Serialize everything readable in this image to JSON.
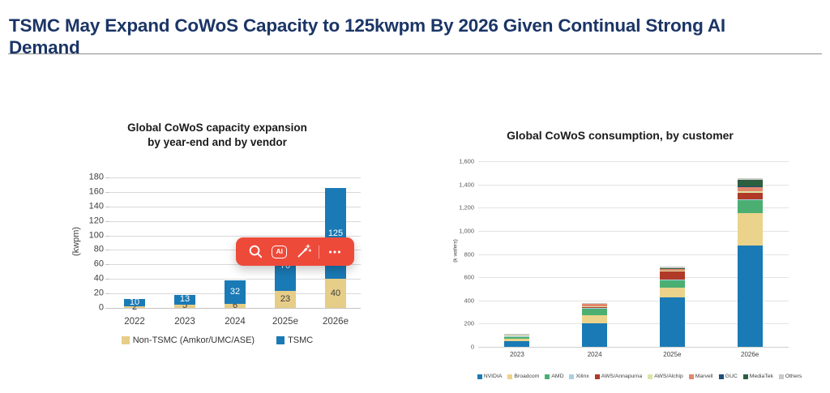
{
  "page": {
    "title": "TSMC May Expand CoWoS Capacity to 125kwpm By 2026 Given Continual Strong AI Demand"
  },
  "toolbar": {
    "color": "#ee4a3a",
    "ai_label": "AI",
    "icons": [
      "search-icon",
      "ai-icon",
      "magic-wand-icon",
      "more-icon"
    ]
  },
  "chart_data": [
    {
      "type": "bar",
      "stacked": true,
      "title": "Global CoWoS capacity expansion\nby year-end and by vendor",
      "ylabel": "(kwpm)",
      "ylim": [
        0,
        180
      ],
      "ytick_step": 20,
      "grid": true,
      "legend_position": "bottom",
      "categories": [
        "2022",
        "2023",
        "2024",
        "2025e",
        "2026e"
      ],
      "series": [
        {
          "name": "Non-TSMC (Amkor/UMC/ASE)",
          "color": "#e6cd88",
          "label_color": "#3c3c3c",
          "values": [
            2,
            5,
            6,
            23,
            40
          ]
        },
        {
          "name": "TSMC",
          "color": "#1a7ab5",
          "label_color": "#ffffff",
          "values": [
            10,
            13,
            32,
            70,
            125
          ]
        }
      ],
      "show_labels": true
    },
    {
      "type": "bar",
      "stacked": true,
      "title": "Global CoWoS consumption, by customer",
      "ylabel": "(k wafers)",
      "ylim": [
        0,
        1600
      ],
      "ytick_step": 200,
      "grid": true,
      "legend_position": "bottom",
      "categories": [
        "2023",
        "2024",
        "2025e",
        "2026e"
      ],
      "series": [
        {
          "name": "NVIDIA",
          "color": "#1a7ab5",
          "values": [
            48,
            200,
            425,
            875
          ]
        },
        {
          "name": "Broadcom",
          "color": "#ebd38b",
          "values": [
            22,
            75,
            85,
            275
          ]
        },
        {
          "name": "AMD",
          "color": "#4caf72",
          "values": [
            14,
            55,
            65,
            120
          ]
        },
        {
          "name": "Xilinx",
          "color": "#a9cfe3",
          "values": [
            5,
            5,
            5,
            5
          ]
        },
        {
          "name": "AWS/Annapurna",
          "color": "#b03a27",
          "values": [
            0,
            5,
            70,
            55
          ]
        },
        {
          "name": "AWS/Alchip",
          "color": "#dde3a6",
          "values": [
            12,
            8,
            5,
            10
          ]
        },
        {
          "name": "Marvell",
          "color": "#e2876b",
          "values": [
            0,
            20,
            15,
            35
          ]
        },
        {
          "name": "GUC",
          "color": "#1f4e79",
          "values": [
            0,
            0,
            5,
            10
          ]
        },
        {
          "name": "MediaTek",
          "color": "#2c5e40",
          "values": [
            0,
            0,
            5,
            55
          ]
        },
        {
          "name": "Others",
          "color": "#c8cac5",
          "values": [
            12,
            7,
            10,
            15
          ]
        }
      ],
      "show_labels": false
    }
  ]
}
